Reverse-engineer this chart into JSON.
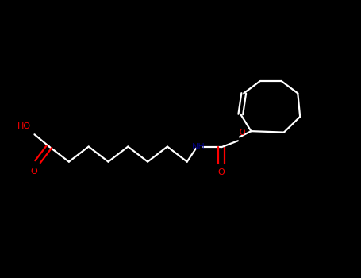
{
  "background_color": "#000000",
  "bond_color": "#ffffff",
  "red": "#ff0000",
  "blue": "#00008b",
  "lw": 1.6,
  "figsize": [
    4.55,
    3.5
  ],
  "dpi": 100,
  "xlim": [
    -0.05,
    1.05
  ],
  "ylim": [
    -0.05,
    1.05
  ]
}
